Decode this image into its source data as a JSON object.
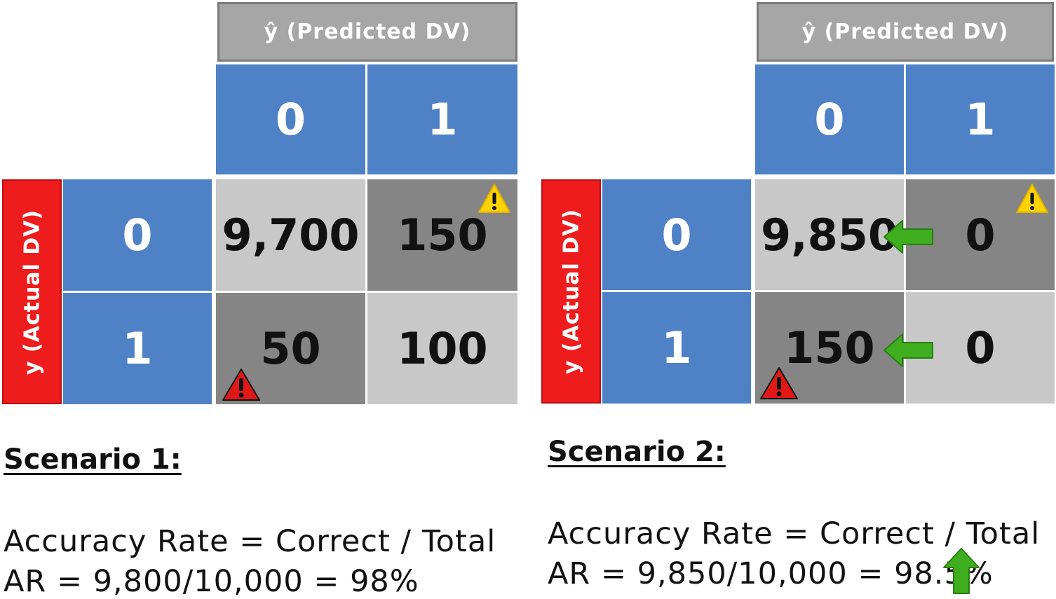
{
  "header_label": "ŷ (Predicted DV)",
  "side_label": "y (Actual DV)",
  "scenario1": {
    "title": "Scenario 1:",
    "col_labels": [
      "0",
      "1"
    ],
    "row_labels": [
      "0",
      "1"
    ],
    "cells": {
      "r0c0": "9,700",
      "r0c1": "150",
      "r1c0": "50",
      "r1c1": "100"
    },
    "formula_line1": "Accuracy Rate = Correct / Total",
    "formula_line2": "AR = 9,800/10,000 = 98%"
  },
  "scenario2": {
    "title": "Scenario 2:",
    "col_labels": [
      "0",
      "1"
    ],
    "row_labels": [
      "0",
      "1"
    ],
    "cells": {
      "r0c0": "9,850",
      "r0c1": "0",
      "r1c0": "150",
      "r1c1": "0"
    },
    "formula_line1": "Accuracy Rate = Correct / Total",
    "formula_line2": "AR = 9,850/10,000 = 98.5%"
  },
  "colors": {
    "blue": "#4f81c6",
    "light_gray": "#c8c8c8",
    "dark_gray": "#858585",
    "header_gray": "#a6a6a6",
    "red": "#ee1c1c",
    "warning_yellow": "#ffd200",
    "error_red": "#e11818",
    "arrow_green": "#3fae1e"
  },
  "icons": [
    "warning-triangle-yellow-icon",
    "warning-triangle-red-icon",
    "arrow-left-green-icon",
    "arrow-up-green-icon"
  ]
}
